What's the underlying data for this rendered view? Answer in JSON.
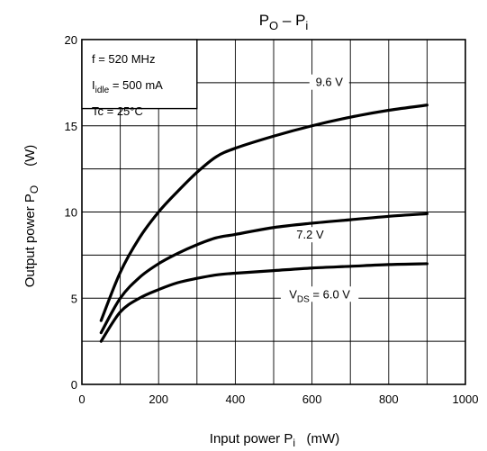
{
  "chart_data": {
    "type": "line",
    "title": {
      "main": "P",
      "sub1": "O",
      "dash": " – ",
      "main2": "P",
      "sub2": "i"
    },
    "ylabel": {
      "text": "Output power   P",
      "sub": "O",
      "unit": "(W)"
    },
    "xlabel": {
      "text": "Input power   P",
      "sub": "i",
      "unit": "(mW)"
    },
    "xlim": [
      0,
      1000
    ],
    "ylim": [
      0,
      20
    ],
    "xticks": [
      0,
      200,
      400,
      600,
      800,
      1000
    ],
    "yticks": [
      0,
      5,
      10,
      15,
      20
    ],
    "xgrid": [
      0,
      100,
      200,
      300,
      400,
      500,
      600,
      700,
      800,
      900,
      1000
    ],
    "ygrid": [
      0,
      2.5,
      5,
      7.5,
      10,
      12.5,
      15,
      17.5,
      20
    ],
    "grid": true,
    "conditions": [
      {
        "text": "f = 520 MHz",
        "main": "",
        "sub": "",
        "rest": ""
      },
      {
        "text": "",
        "main": "I",
        "sub": "idle",
        "rest": " = 500 mA"
      },
      {
        "text": "Tc = 25°C",
        "main": "",
        "sub": "",
        "rest": ""
      }
    ],
    "series": [
      {
        "name": "9.6 V",
        "label": {
          "main": "9.6 V",
          "sub": "",
          "rest": ""
        },
        "x": [
          50,
          100,
          150,
          200,
          250,
          300,
          350,
          400,
          500,
          600,
          700,
          800,
          900
        ],
        "y": [
          3.7,
          6.5,
          8.5,
          10.0,
          11.2,
          12.3,
          13.2,
          13.7,
          14.4,
          15.0,
          15.5,
          15.9,
          16.2
        ]
      },
      {
        "name": "7.2 V",
        "label": {
          "main": "7.2 V",
          "sub": "",
          "rest": ""
        },
        "x": [
          50,
          100,
          150,
          200,
          250,
          300,
          350,
          400,
          500,
          600,
          700,
          800,
          900
        ],
        "y": [
          3.0,
          5.0,
          6.2,
          7.0,
          7.6,
          8.1,
          8.5,
          8.7,
          9.1,
          9.35,
          9.55,
          9.75,
          9.9
        ]
      },
      {
        "name": "VDS = 6.0 V",
        "label": {
          "main": "V",
          "sub": "DS",
          "rest": " = 6.0 V"
        },
        "x": [
          50,
          100,
          150,
          200,
          250,
          300,
          350,
          400,
          500,
          600,
          700,
          800,
          900
        ],
        "y": [
          2.5,
          4.2,
          5.0,
          5.5,
          5.9,
          6.15,
          6.35,
          6.45,
          6.6,
          6.75,
          6.85,
          6.95,
          7.0
        ]
      }
    ],
    "colors": {
      "line": "#000000",
      "grid": "#000000",
      "background": "#ffffff"
    }
  }
}
